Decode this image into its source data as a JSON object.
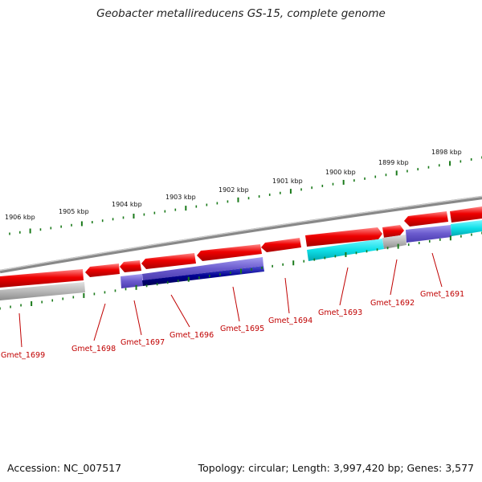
{
  "title": "Geobacter metallireducens GS-15, complete genome",
  "accession_text": "Accession: NC_007517",
  "summary_text": "Topology: circular; Length: 3,997,420 bp; Genes: 3,577",
  "colors": {
    "backbone": "#888888",
    "red_gene": "#e80000",
    "cyan_gene": "#10e0e8",
    "purple_gene": "#6a5acd",
    "navy_gene": "#000080",
    "gray_gene": "#b8b8b8",
    "tick": "#1a7a1a",
    "label": "#c00000"
  },
  "scale_labels": [
    "1906 kbp",
    "1905 kbp",
    "1904 kbp",
    "1903 kbp",
    "1902 kbp",
    "1901 kbp",
    "1900 kbp",
    "1899 kbp",
    "1898 kbp"
  ],
  "gene_labels": [
    "Gmet_1699",
    "Gmet_1698",
    "Gmet_1697",
    "Gmet_1696",
    "Gmet_1695",
    "Gmet_1694",
    "Gmet_1693",
    "Gmet_1692",
    "Gmet_1691"
  ]
}
